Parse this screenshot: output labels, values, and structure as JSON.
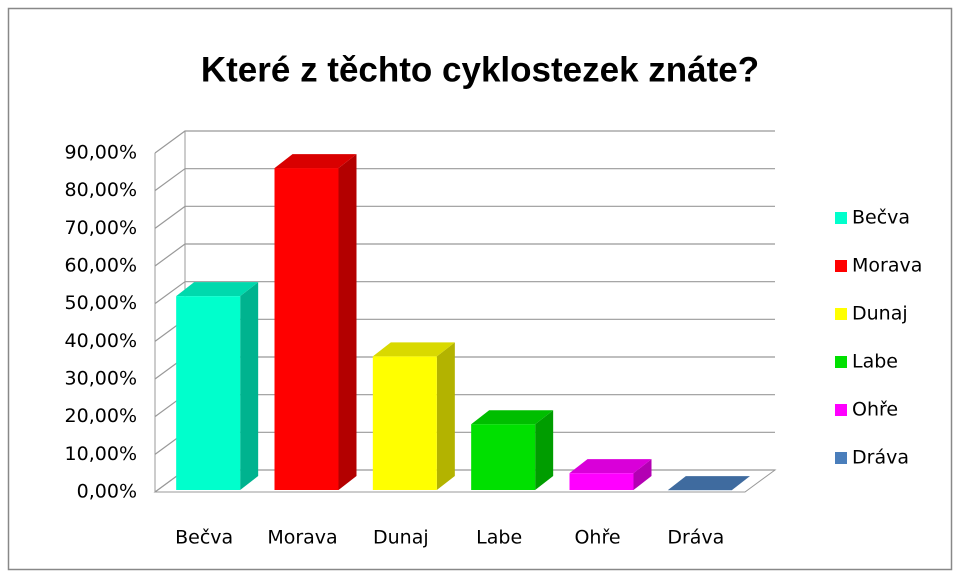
{
  "chart_data": {
    "type": "bar3d",
    "title": "Které z těchto cyklostezek znáte?",
    "categories": [
      "Bečva",
      "Morava",
      "Dunaj",
      "Labe",
      "Ohře",
      "Dráva"
    ],
    "values": [
      52,
      86,
      36,
      18,
      5,
      0.5
    ],
    "colors": [
      "#00ffcc",
      "#ff0000",
      "#ffff00",
      "#00e000",
      "#ff00ff",
      "#4a7ebb"
    ],
    "ylim": [
      0,
      90
    ],
    "yticks": [
      {
        "value": 0,
        "label": "0,00%"
      },
      {
        "value": 10,
        "label": "10,00%"
      },
      {
        "value": 20,
        "label": "20,00%"
      },
      {
        "value": 30,
        "label": "30,00%"
      },
      {
        "value": 40,
        "label": "40,00%"
      },
      {
        "value": 50,
        "label": "50,00%"
      },
      {
        "value": 60,
        "label": "60,00%"
      },
      {
        "value": 70,
        "label": "70,00%"
      },
      {
        "value": 80,
        "label": "80,00%"
      },
      {
        "value": 90,
        "label": "90,00%"
      }
    ],
    "grid": true,
    "legend": "right"
  }
}
